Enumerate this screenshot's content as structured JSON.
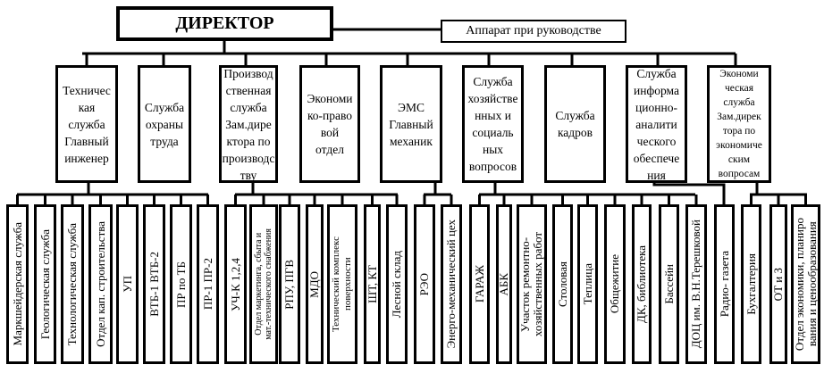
{
  "director": "ДИРЕКТОР",
  "apparatus": "Аппарат при руководстве",
  "services": [
    "Техничес\nкая\nслужба\nГлавный\nинженер",
    "Служба\nохраны\nтруда",
    "Производ\nственная\nслужба\nЗам.дире\nктора по\nпроизводс\nтву",
    "Экономи\nко-право\nвой\nотдел",
    "ЭМС\nГлавный\nмеханик",
    "Служба\nхозяйстве\nнных и\nсоциаль\nных\nвопросов",
    "Служба\nкадров",
    "Служба\nинформа\nционно-\nаналити\nческого\nобеспече\nния",
    "Экономи\nческая\nслужба\nЗам.дирек\nтора по\nэкономиче\nским\nвопросам"
  ],
  "units": [
    "Маркшейдерская служба",
    "Геологическая служба",
    "Технологическая служба",
    "Отдел кап. строительства",
    "УП",
    "ВТБ-1    ВТБ-2",
    "ПР по ТБ",
    "ПР-1    ПР-2",
    "УЧ-К 1,2,4",
    "Отдел маркетинга, сбыта и\nмат.-технического снабжения",
    "РПУ, ПГВ",
    "МДО",
    "Технический комплекс\nповерхности",
    "ШТ, КТ",
    "Лесной склад",
    "РЭО",
    "Энерго-механический цех",
    "ГАРАЖ",
    "АБК",
    "Участок ремонтно-\nхозяйственных работ",
    "Столовая",
    "Теплица",
    "Общежитие",
    "ДК, библиотека",
    "Бассейн",
    "ДОЦ им. В.Н.Терешковой",
    "Радио- газета",
    "Бухгалтерия",
    "ОТ и З",
    "Отдел экономики, планиро\nвания и ценообразования"
  ]
}
